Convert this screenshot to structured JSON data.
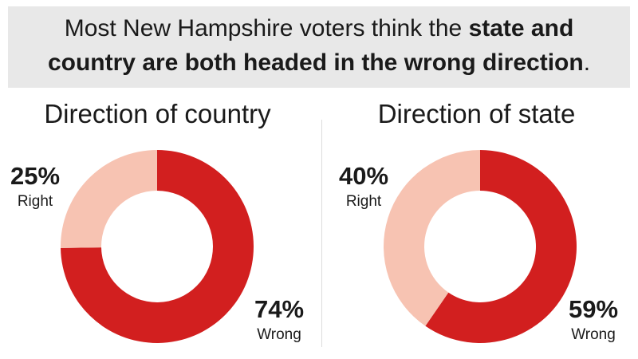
{
  "header": {
    "text_plain": "Most New Hampshire voters think the ",
    "text_bold1": "state and",
    "text_bold2": "country are both headed in the wrong direction",
    "text_end": "."
  },
  "colors": {
    "wrong": "#d21f1f",
    "right": "#f7c3b2",
    "header_bg": "#e8e8e8"
  },
  "chart_data": [
    {
      "type": "pie",
      "title": "Direction of country",
      "slices": [
        {
          "label": "Wrong",
          "value": 74,
          "display": "74%"
        },
        {
          "label": "Right",
          "value": 25,
          "display": "25%"
        }
      ]
    },
    {
      "type": "pie",
      "title": "Direction of state",
      "slices": [
        {
          "label": "Wrong",
          "value": 59,
          "display": "59%"
        },
        {
          "label": "Right",
          "value": 40,
          "display": "40%"
        }
      ]
    }
  ]
}
